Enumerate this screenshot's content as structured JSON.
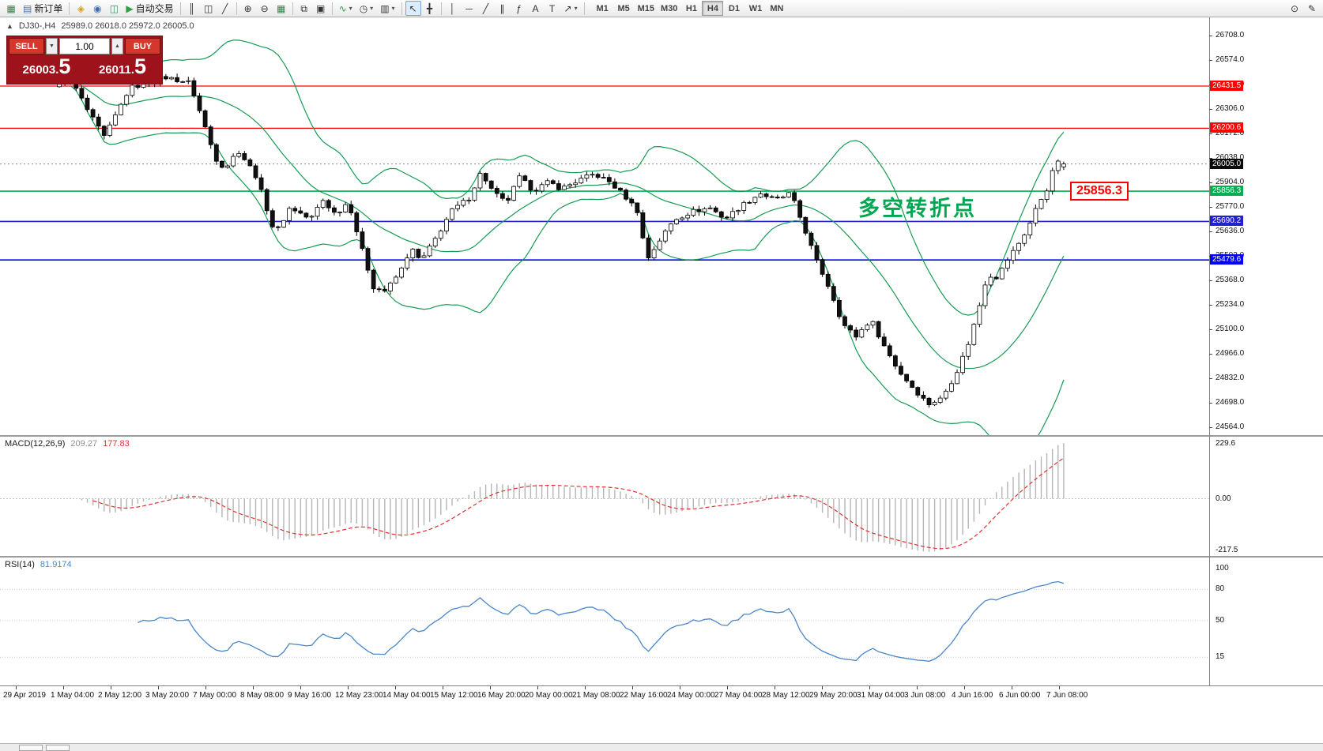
{
  "colors": {
    "up": "#ffffff",
    "down": "#111111",
    "bands": "#169b54",
    "rsi": "#4a86c8",
    "signal": "#e03131",
    "hist": "#b5b5b5",
    "annotation_green": "#00a651",
    "note_red": "#ff0000",
    "level_red": "#ff0000",
    "level_green": "#00b050",
    "level_blue_dark": "#2222cc",
    "level_blue": "#0000ff",
    "current_tag": "#0a0a0a"
  },
  "toolbar": {
    "items": [
      {
        "name": "new-chart-button",
        "glyph": "▦",
        "color": "#3a7d44"
      },
      {
        "name": "new-order-button",
        "glyph": "▤",
        "label": "新订单",
        "color": "#4a6fa5"
      },
      {
        "sep": true
      },
      {
        "name": "navigator-button",
        "glyph": "◈",
        "color": "#d4a017"
      },
      {
        "name": "market-watch-button",
        "glyph": "◉",
        "color": "#3f6fb5"
      },
      {
        "name": "data-window-button",
        "glyph": "◫",
        "color": "#3a8f5f"
      },
      {
        "name": "autotrading-button",
        "glyph": "▶",
        "label": "自动交易",
        "color": "#2f9e44"
      },
      {
        "sep": true
      },
      {
        "name": "bar-chart-button",
        "glyph": "║"
      },
      {
        "name": "candlestick-chart-button",
        "glyph": "◫"
      },
      {
        "name": "line-chart-button",
        "glyph": "╱"
      },
      {
        "sep": true
      },
      {
        "name": "zoom-in-button",
        "glyph": "⊕"
      },
      {
        "name": "zoom-out-button",
        "glyph": "⊖"
      },
      {
        "name": "grid-button",
        "glyph": "▦",
        "color": "#3a7d44"
      },
      {
        "sep": true
      },
      {
        "name": "tile-windows-button",
        "glyph": "⧉"
      },
      {
        "name": "cascade-windows-button",
        "glyph": "▣"
      },
      {
        "sep": true
      },
      {
        "name": "indicators-button",
        "glyph": "∿",
        "color": "#2f9e44",
        "drop": true
      },
      {
        "name": "periods-button",
        "glyph": "◷",
        "drop": true
      },
      {
        "name": "templates-button",
        "glyph": "▥",
        "drop": true
      },
      {
        "sep": true
      },
      {
        "name": "cursor-tool",
        "glyph": "↖",
        "active": true
      },
      {
        "name": "crosshair-tool",
        "glyph": "╋"
      },
      {
        "sep": true
      },
      {
        "name": "vertical-line-tool",
        "glyph": "│"
      },
      {
        "name": "horizontal-line-tool",
        "glyph": "─"
      },
      {
        "name": "trendline-tool",
        "glyph": "╱"
      },
      {
        "name": "channel-tool",
        "glyph": "∥"
      },
      {
        "name": "fibonacci-tool",
        "glyph": "ƒ"
      },
      {
        "name": "text-tool",
        "glyph": "A"
      },
      {
        "name": "text-label-tool",
        "glyph": "T"
      },
      {
        "name": "arrows-tool",
        "glyph": "↗",
        "drop": true
      },
      {
        "sep": true
      }
    ],
    "timeframes": [
      {
        "label": "M1"
      },
      {
        "label": "M5"
      },
      {
        "label": "M15"
      },
      {
        "label": "M30"
      },
      {
        "label": "H1"
      },
      {
        "label": "H4",
        "active": true
      },
      {
        "label": "D1"
      },
      {
        "label": "W1"
      },
      {
        "label": "MN"
      }
    ],
    "right_items": [
      {
        "name": "search-icon",
        "glyph": "⊙"
      },
      {
        "name": "properties-icon",
        "glyph": "✎"
      }
    ]
  },
  "chart": {
    "symbol_period": "DJ30-,H4",
    "ohlc": "25989.0 26018.0 25972.0 26005.0",
    "one_click": {
      "sell_label": "SELL",
      "buy_label": "BUY",
      "volume": "1.00",
      "sell_price": "26003.",
      "sell_price_big": "5",
      "buy_price": "26011.",
      "buy_price_big": "5"
    },
    "annotation": "多空转折点",
    "price_note": "25856.3",
    "price_axis": [
      "26708.0",
      "26574.0",
      "26440.0",
      "26306.0",
      "26172.0",
      "26038.0",
      "25904.0",
      "25770.0",
      "25636.0",
      "25502.0",
      "25368.0",
      "25234.0",
      "25100.0",
      "24966.0",
      "24832.0",
      "24698.0",
      "24564.0"
    ],
    "hlines": [
      {
        "price": 26431.5,
        "label": "26431.5",
        "color": "#ff0000",
        "w": 1.2
      },
      {
        "price": 26200.6,
        "label": "26200.6",
        "color": "#ff0000",
        "w": 1.2
      },
      {
        "price": 25856.3,
        "label": "25856.3",
        "color": "#00b050",
        "w": 1.6
      },
      {
        "price": 25690.2,
        "label": "25690.2",
        "color": "#2222cc",
        "w": 1.6
      },
      {
        "price": 25479.6,
        "label": "25479.6",
        "color": "#0000ff",
        "w": 1.6
      }
    ],
    "current_price": {
      "value": 26005.0,
      "label": "26005.0"
    },
    "time_axis": [
      "29 Apr 2019",
      "1 May 04:00",
      "2 May 12:00",
      "3 May 20:00",
      "7 May 00:00",
      "8 May 08:00",
      "9 May 16:00",
      "12 May 23:00",
      "14 May 04:00",
      "15 May 12:00",
      "16 May 20:00",
      "20 May 00:00",
      "21 May 08:00",
      "22 May 16:00",
      "24 May 00:00",
      "27 May 04:00",
      "28 May 12:00",
      "29 May 20:00",
      "31 May 04:00",
      "3 Jun 08:00",
      "4 Jun 16:00",
      "6 Jun 00:00",
      "7 Jun 08:00"
    ]
  },
  "macd": {
    "name": "MACD(12,26,9)",
    "main_value": "209.27",
    "signal_value": "177.83",
    "axis": [
      "229.6",
      "0.00",
      "-217.5"
    ]
  },
  "rsi": {
    "name": "RSI(14)",
    "value": "81.9174",
    "axis": [
      "100",
      "80",
      "50",
      "15"
    ],
    "levels": [
      80,
      50,
      15
    ]
  },
  "chart_data": {
    "type": "candlestick+indicators",
    "symbol": "DJ30-",
    "timeframe": "H4",
    "last_ohlc": {
      "open": 25989.0,
      "high": 26018.0,
      "low": 25972.0,
      "close": 26005.0
    },
    "price_range": [
      24564.0,
      26708.0
    ],
    "n_candles": 180,
    "key_levels": [
      26431.5,
      26200.6,
      26005.0,
      25856.3,
      25690.2,
      25479.6
    ],
    "indicators": {
      "bollinger": {
        "period": 20,
        "deviation": 2
      },
      "macd": {
        "fast": 12,
        "slow": 26,
        "signal": 9,
        "current_main": 209.27,
        "current_signal": 177.83,
        "range": [
          -217.5,
          229.6
        ]
      },
      "rsi": {
        "period": 14,
        "current": 81.9174,
        "range": [
          0,
          100
        ]
      }
    },
    "note": "price_path = estimated [time_fraction, price] anchors tracing the visible H4 candle trajectory (29 Apr - 7 Jun 2019); candles are reconstructed along this path",
    "price_path": [
      [
        0,
        26440
      ],
      [
        0.01,
        26485
      ],
      [
        0.03,
        26280
      ],
      [
        0.045,
        26150
      ],
      [
        0.07,
        26420
      ],
      [
        0.105,
        26480
      ],
      [
        0.13,
        26450
      ],
      [
        0.145,
        26210
      ],
      [
        0.155,
        26040
      ],
      [
        0.165,
        25980
      ],
      [
        0.178,
        26080
      ],
      [
        0.195,
        25950
      ],
      [
        0.205,
        25790
      ],
      [
        0.215,
        25620
      ],
      [
        0.23,
        25770
      ],
      [
        0.25,
        25700
      ],
      [
        0.262,
        25810
      ],
      [
        0.275,
        25730
      ],
      [
        0.288,
        25800
      ],
      [
        0.3,
        25560
      ],
      [
        0.313,
        25330
      ],
      [
        0.325,
        25310
      ],
      [
        0.34,
        25420
      ],
      [
        0.35,
        25545
      ],
      [
        0.36,
        25470
      ],
      [
        0.375,
        25600
      ],
      [
        0.39,
        25745
      ],
      [
        0.408,
        25820
      ],
      [
        0.42,
        25960
      ],
      [
        0.432,
        25850
      ],
      [
        0.445,
        25790
      ],
      [
        0.458,
        25930
      ],
      [
        0.472,
        25860
      ],
      [
        0.487,
        25905
      ],
      [
        0.5,
        25870
      ],
      [
        0.517,
        25915
      ],
      [
        0.533,
        25950
      ],
      [
        0.548,
        25905
      ],
      [
        0.563,
        25830
      ],
      [
        0.576,
        25745
      ],
      [
        0.585,
        25480
      ],
      [
        0.598,
        25590
      ],
      [
        0.612,
        25700
      ],
      [
        0.63,
        25745
      ],
      [
        0.648,
        25765
      ],
      [
        0.663,
        25705
      ],
      [
        0.68,
        25780
      ],
      [
        0.698,
        25845
      ],
      [
        0.713,
        25805
      ],
      [
        0.728,
        25845
      ],
      [
        0.742,
        25650
      ],
      [
        0.753,
        25485
      ],
      [
        0.768,
        25310
      ],
      [
        0.78,
        25130
      ],
      [
        0.793,
        25060
      ],
      [
        0.808,
        25155
      ],
      [
        0.822,
        25000
      ],
      [
        0.836,
        24870
      ],
      [
        0.85,
        24780
      ],
      [
        0.865,
        24690
      ],
      [
        0.878,
        24720
      ],
      [
        0.892,
        24850
      ],
      [
        0.904,
        25005
      ],
      [
        0.914,
        25185
      ],
      [
        0.924,
        25400
      ],
      [
        0.934,
        25385
      ],
      [
        0.944,
        25480
      ],
      [
        0.954,
        25560
      ],
      [
        0.964,
        25650
      ],
      [
        0.974,
        25780
      ],
      [
        0.984,
        25875
      ],
      [
        0.993,
        26030
      ],
      [
        1,
        26005
      ]
    ]
  }
}
